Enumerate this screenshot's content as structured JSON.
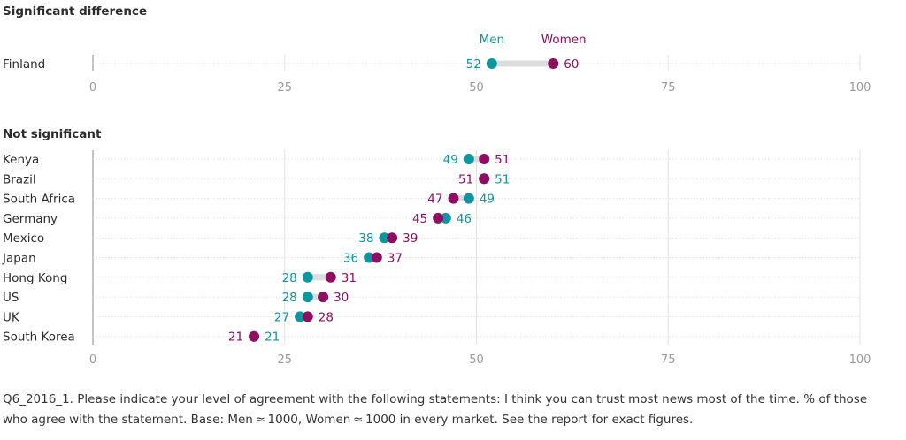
{
  "colors": {
    "men": "#0f959f",
    "women": "#8e0f62",
    "connector": "#dcdcdc",
    "grid": "#e2e2e2",
    "tick": "#999999"
  },
  "chart_data": [
    {
      "type": "dumbbell",
      "title": "Significant difference",
      "legend": [
        "Men",
        "Women"
      ],
      "xlim": [
        0,
        100
      ],
      "xticks": [
        0,
        25,
        50,
        75,
        100
      ],
      "categories": [
        "Finland"
      ],
      "series": [
        {
          "name": "Men",
          "values": [
            52
          ]
        },
        {
          "name": "Women",
          "values": [
            60
          ]
        }
      ]
    },
    {
      "type": "dumbbell",
      "title": "Not significant",
      "xlim": [
        0,
        100
      ],
      "xticks": [
        0,
        25,
        50,
        75,
        100
      ],
      "categories": [
        "Kenya",
        "Brazil",
        "South Africa",
        "Germany",
        "Mexico",
        "Japan",
        "Hong Kong",
        "US",
        "UK",
        "South Korea"
      ],
      "series": [
        {
          "name": "Men",
          "values": [
            49,
            51,
            49,
            46,
            38,
            36,
            28,
            28,
            27,
            21
          ]
        },
        {
          "name": "Women",
          "values": [
            51,
            51,
            47,
            45,
            39,
            37,
            31,
            30,
            28,
            21
          ]
        }
      ]
    }
  ],
  "footnote": "Q6_2016_1. Please indicate your level of agreement with the following statements: I think you can trust most news most of the time. % of those who agree with the statement. Base: Men ≈ 1000, Women ≈ 1000 in every market. See the report for exact figures."
}
